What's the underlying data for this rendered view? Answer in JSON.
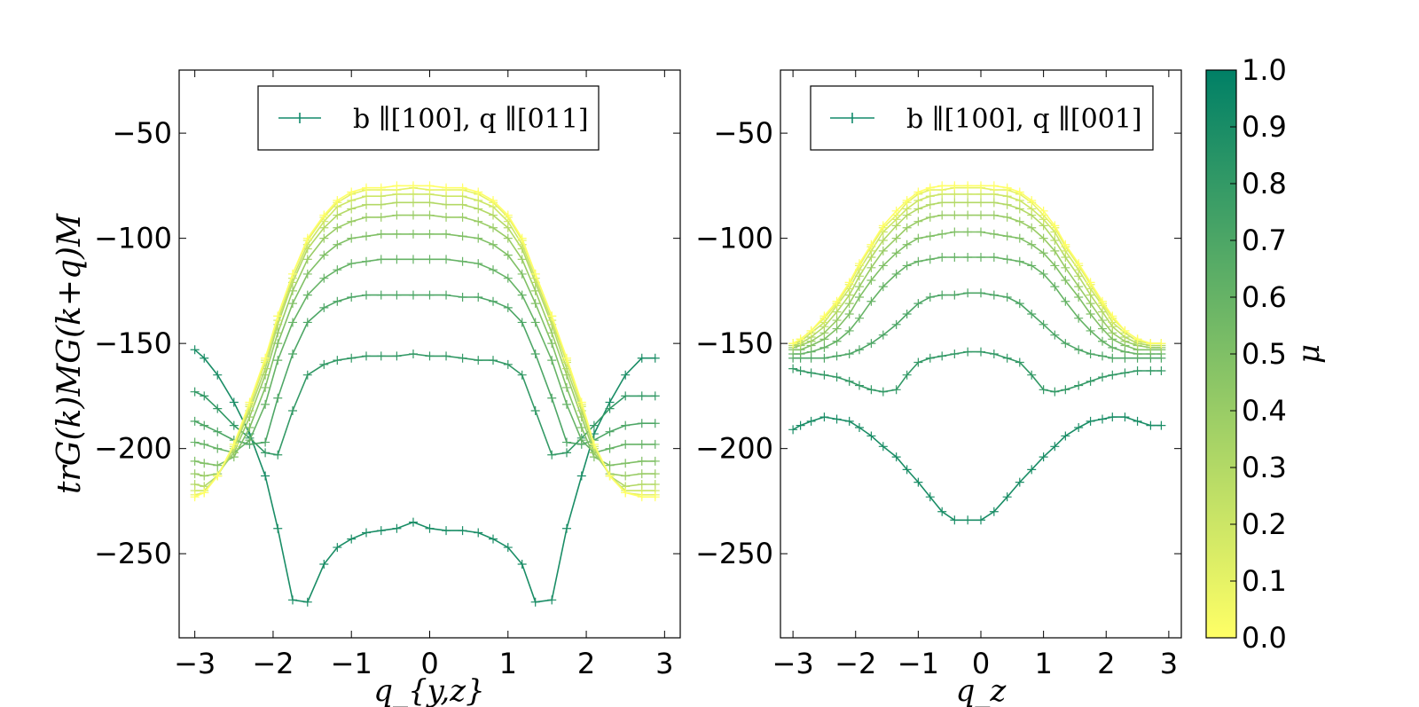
{
  "chart_data": [
    {
      "type": "line",
      "panel": "left",
      "xlabel": "q_{y,z}",
      "ylabel": "trG(k)MG(k+q)M",
      "legend": "b ∥[100],   q ∥[011]",
      "xlim": [
        -3.2,
        3.2
      ],
      "ylim": [
        -290,
        -20
      ],
      "xticks": [
        -3,
        -2,
        -1,
        0,
        1,
        2,
        3
      ],
      "yticks": [
        -50,
        -100,
        -150,
        -200,
        -250
      ],
      "x": [
        -3.0,
        -2.88,
        -2.71,
        -2.5,
        -2.3,
        -2.1,
        -1.94,
        -1.75,
        -1.56,
        -1.35,
        -1.18,
        -1.0,
        -0.81,
        -0.62,
        -0.42,
        -0.21,
        0.0,
        0.21,
        0.42,
        0.62,
        0.81,
        1.0,
        1.18,
        1.35,
        1.56,
        1.75,
        1.94,
        2.1,
        2.3,
        2.5,
        2.71,
        2.88
      ],
      "series": [
        {
          "mu": 0.9,
          "values": [
            -153,
            -157,
            -165,
            -178,
            -193,
            -213,
            -238,
            -272,
            -273,
            -255,
            -247,
            -243,
            -240,
            -239,
            -238,
            -235,
            -238,
            -239,
            -239,
            -240,
            -243,
            -247,
            -255,
            -273,
            -272,
            -238,
            -213,
            -193,
            -178,
            -165,
            -157,
            -157
          ]
        },
        {
          "mu": 0.8,
          "values": [
            -173,
            -175,
            -181,
            -189,
            -195,
            -202,
            -203,
            -182,
            -165,
            -160,
            -158,
            -157,
            -156,
            -156,
            -156,
            -155,
            -156,
            -156,
            -157,
            -158,
            -158,
            -160,
            -165,
            -182,
            -203,
            -202,
            -195,
            -189,
            -181,
            -175,
            -175,
            -175
          ]
        },
        {
          "mu": 0.7,
          "values": [
            -187,
            -189,
            -192,
            -196,
            -198,
            -197,
            -176,
            -155,
            -140,
            -133,
            -130,
            -128,
            -127,
            -127,
            -127,
            -127,
            -127,
            -127,
            -128,
            -128,
            -130,
            -133,
            -140,
            -155,
            -176,
            -197,
            -198,
            -196,
            -192,
            -189,
            -188,
            -188
          ]
        },
        {
          "mu": 0.6,
          "values": [
            -197,
            -198,
            -200,
            -202,
            -196,
            -179,
            -158,
            -140,
            -127,
            -119,
            -115,
            -112,
            -111,
            -110,
            -110,
            -110,
            -110,
            -110,
            -111,
            -112,
            -115,
            -119,
            -127,
            -140,
            -158,
            -179,
            -196,
            -202,
            -200,
            -198,
            -198,
            -198
          ]
        },
        {
          "mu": 0.5,
          "values": [
            -206,
            -207,
            -208,
            -204,
            -190,
            -171,
            -150,
            -131,
            -117,
            -108,
            -103,
            -100,
            -99,
            -98,
            -98,
            -98,
            -98,
            -98,
            -99,
            -100,
            -103,
            -108,
            -117,
            -131,
            -150,
            -171,
            -190,
            -204,
            -208,
            -207,
            -206,
            -206
          ]
        },
        {
          "mu": 0.4,
          "values": [
            -212,
            -213,
            -212,
            -202,
            -185,
            -165,
            -145,
            -125,
            -110,
            -100,
            -95,
            -92,
            -90,
            -90,
            -89,
            -89,
            -89,
            -90,
            -90,
            -92,
            -95,
            -100,
            -110,
            -125,
            -145,
            -165,
            -185,
            -202,
            -212,
            -213,
            -212,
            -212
          ]
        },
        {
          "mu": 0.3,
          "values": [
            -217,
            -218,
            -213,
            -200,
            -182,
            -162,
            -141,
            -121,
            -105,
            -95,
            -89,
            -86,
            -84,
            -84,
            -83,
            -83,
            -83,
            -84,
            -84,
            -86,
            -89,
            -95,
            -105,
            -121,
            -141,
            -162,
            -182,
            -200,
            -213,
            -218,
            -217,
            -217
          ]
        },
        {
          "mu": 0.2,
          "values": [
            -220,
            -220,
            -213,
            -199,
            -180,
            -159,
            -139,
            -119,
            -103,
            -92,
            -85,
            -82,
            -80,
            -80,
            -79,
            -79,
            -79,
            -80,
            -80,
            -82,
            -85,
            -92,
            -103,
            -119,
            -139,
            -159,
            -180,
            -199,
            -213,
            -220,
            -220,
            -220
          ]
        },
        {
          "mu": 0.1,
          "values": [
            -222,
            -221,
            -213,
            -198,
            -179,
            -158,
            -137,
            -117,
            -101,
            -90,
            -83,
            -79,
            -77,
            -77,
            -77,
            -76,
            -77,
            -77,
            -77,
            -79,
            -83,
            -90,
            -101,
            -117,
            -137,
            -158,
            -179,
            -198,
            -213,
            -221,
            -222,
            -222
          ]
        },
        {
          "mu": 0.0,
          "values": [
            -223,
            -221,
            -213,
            -198,
            -178,
            -157,
            -137,
            -117,
            -100,
            -89,
            -82,
            -78,
            -76,
            -76,
            -75,
            -75,
            -75,
            -76,
            -76,
            -78,
            -82,
            -89,
            -100,
            -117,
            -137,
            -157,
            -178,
            -198,
            -213,
            -221,
            -223,
            -223
          ]
        }
      ]
    },
    {
      "type": "line",
      "panel": "right",
      "xlabel": "q_z",
      "ylabel": "",
      "legend": "b ∥[100],   q ∥[001]",
      "xlim": [
        -3.2,
        3.2
      ],
      "ylim": [
        -290,
        -20
      ],
      "xticks": [
        -3,
        -2,
        -1,
        0,
        1,
        2,
        3
      ],
      "yticks": [
        -50,
        -100,
        -150,
        -200,
        -250
      ],
      "x": [
        -3.0,
        -2.88,
        -2.71,
        -2.5,
        -2.3,
        -2.1,
        -1.94,
        -1.75,
        -1.56,
        -1.35,
        -1.18,
        -1.0,
        -0.81,
        -0.62,
        -0.42,
        -0.21,
        0.0,
        0.21,
        0.42,
        0.62,
        0.81,
        1.0,
        1.18,
        1.35,
        1.56,
        1.75,
        1.94,
        2.1,
        2.3,
        2.5,
        2.71,
        2.88
      ],
      "series": [
        {
          "mu": 0.9,
          "values": [
            -191,
            -189,
            -187,
            -185,
            -186,
            -187,
            -190,
            -194,
            -199,
            -204,
            -210,
            -216,
            -223,
            -230,
            -234,
            -234,
            -234,
            -230,
            -223,
            -216,
            -210,
            -204,
            -199,
            -194,
            -190,
            -187,
            -186,
            -185,
            -185,
            -187,
            -189,
            -189
          ]
        },
        {
          "mu": 0.8,
          "values": [
            -162,
            -163,
            -164,
            -165,
            -166,
            -168,
            -170,
            -172,
            -173,
            -172,
            -165,
            -159,
            -157,
            -156,
            -155,
            -154,
            -154,
            -155,
            -157,
            -159,
            -165,
            -172,
            -173,
            -172,
            -170,
            -168,
            -166,
            -165,
            -164,
            -163,
            -163,
            -163
          ]
        },
        {
          "mu": 0.7,
          "values": [
            -157,
            -157,
            -157,
            -157,
            -156,
            -155,
            -153,
            -150,
            -146,
            -141,
            -136,
            -131,
            -128,
            -127,
            -127,
            -126,
            -126,
            -127,
            -128,
            -131,
            -136,
            -141,
            -146,
            -150,
            -153,
            -155,
            -156,
            -157,
            -157,
            -157,
            -157,
            -157
          ]
        },
        {
          "mu": 0.6,
          "values": [
            -155,
            -155,
            -154,
            -152,
            -149,
            -144,
            -138,
            -130,
            -123,
            -117,
            -113,
            -111,
            -110,
            -109,
            -109,
            -109,
            -109,
            -109,
            -110,
            -111,
            -113,
            -117,
            -123,
            -130,
            -138,
            -144,
            -149,
            -152,
            -154,
            -155,
            -155,
            -155
          ]
        },
        {
          "mu": 0.5,
          "values": [
            -153,
            -153,
            -151,
            -148,
            -143,
            -136,
            -128,
            -120,
            -113,
            -107,
            -103,
            -100,
            -99,
            -98,
            -97,
            -97,
            -97,
            -98,
            -99,
            -100,
            -103,
            -107,
            -113,
            -120,
            -128,
            -136,
            -143,
            -148,
            -151,
            -153,
            -153,
            -153
          ]
        },
        {
          "mu": 0.4,
          "values": [
            -152,
            -151,
            -149,
            -145,
            -139,
            -131,
            -123,
            -114,
            -106,
            -100,
            -95,
            -92,
            -90,
            -89,
            -89,
            -89,
            -89,
            -89,
            -90,
            -92,
            -95,
            -100,
            -106,
            -114,
            -123,
            -131,
            -139,
            -145,
            -149,
            -151,
            -152,
            -152
          ]
        },
        {
          "mu": 0.3,
          "values": [
            -151,
            -150,
            -147,
            -142,
            -135,
            -127,
            -118,
            -109,
            -101,
            -94,
            -89,
            -86,
            -84,
            -83,
            -83,
            -83,
            -83,
            -83,
            -84,
            -86,
            -89,
            -94,
            -101,
            -109,
            -118,
            -127,
            -135,
            -142,
            -147,
            -150,
            -151,
            -151
          ]
        },
        {
          "mu": 0.2,
          "values": [
            -150,
            -149,
            -145,
            -140,
            -132,
            -124,
            -115,
            -106,
            -97,
            -91,
            -86,
            -82,
            -80,
            -79,
            -79,
            -79,
            -79,
            -79,
            -80,
            -82,
            -86,
            -91,
            -97,
            -106,
            -115,
            -124,
            -132,
            -140,
            -145,
            -149,
            -150,
            -150
          ]
        },
        {
          "mu": 0.1,
          "values": [
            -150,
            -148,
            -144,
            -138,
            -131,
            -122,
            -113,
            -104,
            -95,
            -89,
            -83,
            -79,
            -77,
            -77,
            -76,
            -76,
            -76,
            -77,
            -77,
            -79,
            -83,
            -89,
            -95,
            -104,
            -113,
            -122,
            -131,
            -138,
            -144,
            -148,
            -150,
            -150
          ]
        },
        {
          "mu": 0.0,
          "values": [
            -150,
            -148,
            -144,
            -137,
            -130,
            -121,
            -112,
            -103,
            -94,
            -87,
            -82,
            -78,
            -76,
            -75,
            -75,
            -75,
            -75,
            -75,
            -76,
            -78,
            -82,
            -87,
            -94,
            -103,
            -112,
            -121,
            -130,
            -137,
            -144,
            -148,
            -150,
            -150
          ]
        }
      ]
    }
  ],
  "colorbar": {
    "label": "μ",
    "ticks": [
      "0.0",
      "0.1",
      "0.2",
      "0.3",
      "0.4",
      "0.5",
      "0.6",
      "0.7",
      "0.8",
      "0.9",
      "1.0"
    ],
    "color_low": "#ffff66",
    "color_high": "#008066"
  }
}
